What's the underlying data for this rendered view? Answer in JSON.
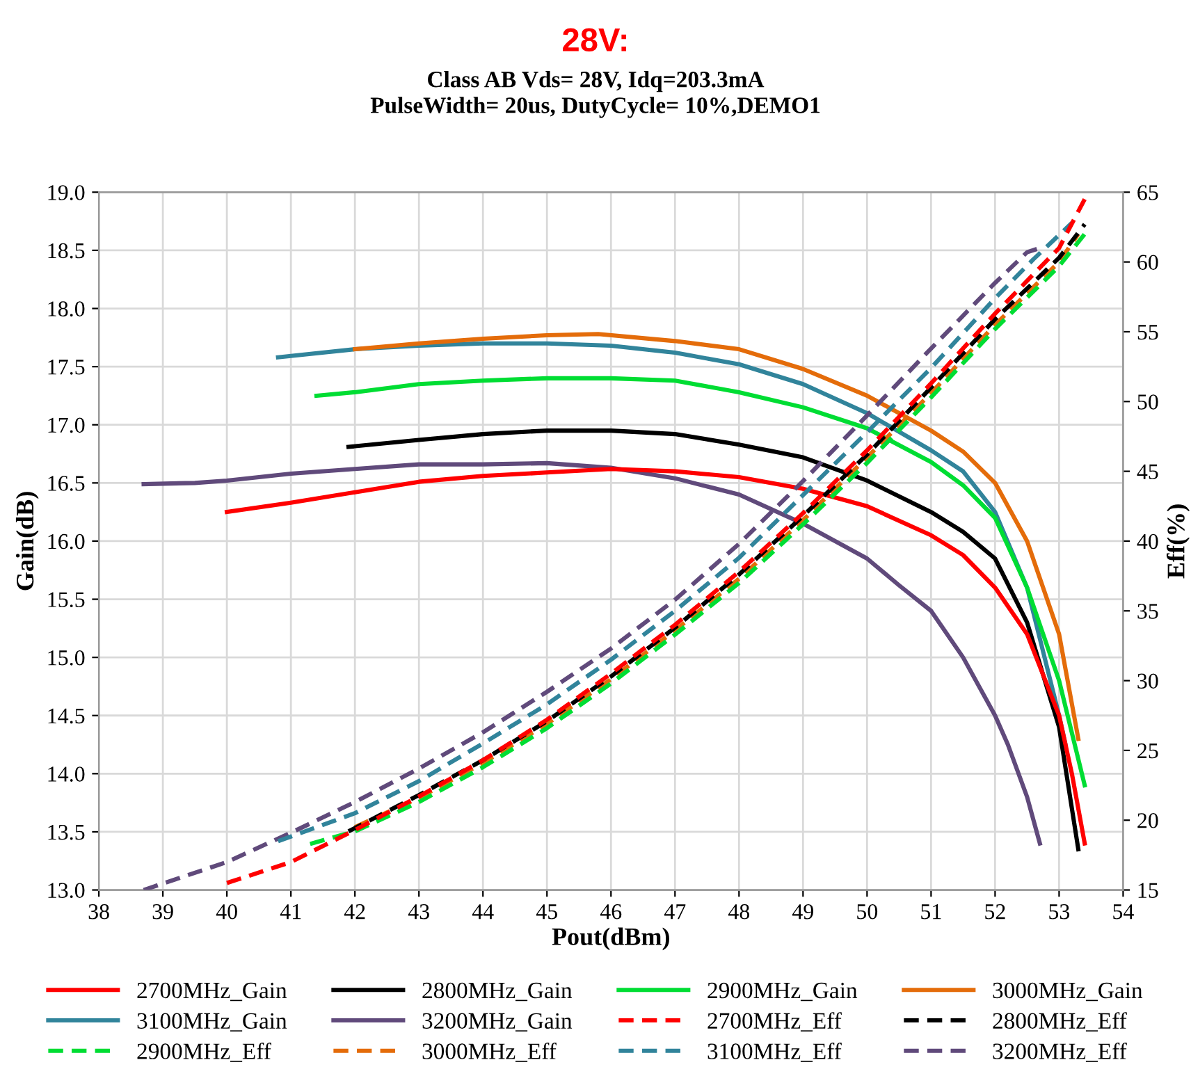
{
  "chart_data": {
    "type": "line",
    "title": "28V:",
    "subtitle": "Class AB Vds= 28V, Idq=203.3mA\nPulseWidth= 20us, DutyCycle= 10%,DEMO1",
    "xlabel": "Pout(dBm)",
    "ylabel": "Gain(dB)",
    "y2label": "Eff(%)",
    "xlim": [
      38,
      54
    ],
    "xticks": [
      38,
      39,
      40,
      41,
      42,
      43,
      44,
      45,
      46,
      47,
      48,
      49,
      50,
      51,
      52,
      53,
      54
    ],
    "ylim": [
      13,
      19
    ],
    "yticks": [
      {
        "value": 13,
        "label": "13.0"
      },
      {
        "value": 13.5,
        "label": "13.5"
      },
      {
        "value": 14,
        "label": "14.0"
      },
      {
        "value": 14.5,
        "label": "14.5"
      },
      {
        "value": 15,
        "label": "15.0"
      },
      {
        "value": 15.5,
        "label": "15.5"
      },
      {
        "value": 16,
        "label": "16.0"
      },
      {
        "value": 16.5,
        "label": "16.5"
      },
      {
        "value": 17,
        "label": "17.0"
      },
      {
        "value": 17.5,
        "label": "17.5"
      },
      {
        "value": 18,
        "label": "18.0"
      },
      {
        "value": 18.5,
        "label": "18.5"
      },
      {
        "value": 19,
        "label": "19.0"
      }
    ],
    "y2lim": [
      15,
      65
    ],
    "y2ticks": [
      15,
      20,
      25,
      30,
      35,
      40,
      45,
      50,
      55,
      60,
      65
    ],
    "grid": true,
    "legend": "bottom",
    "marker": "none",
    "series": [
      {
        "name": "2700MHz_Gain",
        "color": "#ff0000",
        "line_style": "solid",
        "x": [
          40,
          41,
          42,
          43,
          44,
          45,
          46,
          47,
          48,
          49,
          50,
          51,
          51.5,
          52,
          52.5,
          53,
          53.2,
          53.4
        ],
        "values": [
          16.25,
          16.33,
          16.42,
          16.51,
          16.56,
          16.59,
          16.62,
          16.6,
          16.55,
          16.45,
          16.3,
          16.05,
          15.88,
          15.6,
          15.2,
          14.5,
          14.0,
          13.4
        ]
      },
      {
        "name": "2800MHz_Gain",
        "color": "#000000",
        "line_style": "solid",
        "x": [
          41.9,
          43,
          44,
          45,
          46,
          47,
          48,
          49,
          50,
          51,
          51.5,
          52,
          52.5,
          53,
          53.3
        ],
        "values": [
          16.81,
          16.87,
          16.92,
          16.95,
          16.95,
          16.92,
          16.83,
          16.72,
          16.52,
          16.25,
          16.08,
          15.85,
          15.3,
          14.4,
          13.35
        ]
      },
      {
        "name": "2900MHz_Gain",
        "color": "#00dd33",
        "line_style": "solid",
        "x": [
          41.4,
          42,
          43,
          44,
          45,
          46,
          47,
          48,
          49,
          50,
          51,
          51.5,
          52,
          52.5,
          53,
          53.4
        ],
        "values": [
          17.25,
          17.28,
          17.35,
          17.38,
          17.4,
          17.4,
          17.38,
          17.28,
          17.15,
          16.97,
          16.68,
          16.48,
          16.2,
          15.6,
          14.8,
          13.9
        ]
      },
      {
        "name": "3000MHz_Gain",
        "color": "#e46c0a",
        "line_style": "solid",
        "x": [
          42,
          43,
          44,
          45,
          45.8,
          47,
          48,
          49,
          50,
          51,
          51.5,
          52,
          52.5,
          53,
          53.3
        ],
        "values": [
          17.65,
          17.7,
          17.74,
          17.77,
          17.78,
          17.72,
          17.65,
          17.48,
          17.25,
          16.95,
          16.77,
          16.5,
          16.0,
          15.2,
          14.3
        ]
      },
      {
        "name": "3100MHz_Gain",
        "color": "#31849b",
        "line_style": "solid",
        "x": [
          40.8,
          42,
          43,
          44,
          45,
          46,
          47,
          48,
          49,
          50,
          51,
          51.5,
          52,
          52.5,
          53,
          53.1
        ],
        "values": [
          17.58,
          17.65,
          17.68,
          17.7,
          17.7,
          17.68,
          17.62,
          17.52,
          17.35,
          17.1,
          16.78,
          16.6,
          16.25,
          15.6,
          14.5,
          14.25
        ]
      },
      {
        "name": "3200MHz_Gain",
        "color": "#604a7b",
        "line_style": "solid",
        "x": [
          38.7,
          39.5,
          40,
          41,
          42,
          43,
          44,
          45,
          46,
          47,
          48,
          49,
          50,
          50.5,
          51,
          51.5,
          52,
          52.2,
          52.5,
          52.7
        ],
        "values": [
          16.49,
          16.5,
          16.52,
          16.58,
          16.62,
          16.66,
          16.66,
          16.67,
          16.63,
          16.54,
          16.4,
          16.15,
          15.85,
          15.62,
          15.4,
          15.0,
          14.5,
          14.25,
          13.8,
          13.4
        ]
      },
      {
        "name": "2700MHz_Eff",
        "color": "#ff0000",
        "line_style": "dashed",
        "axis": "y2",
        "x": [
          40,
          41,
          42,
          43,
          44,
          45,
          46,
          47,
          48,
          49,
          50,
          51,
          52,
          53,
          53.4
        ],
        "values": [
          15.5,
          17,
          19.3,
          21.7,
          24.3,
          27.2,
          30.5,
          34,
          37.8,
          42,
          46.5,
          51.3,
          56.3,
          61,
          64.5
        ]
      },
      {
        "name": "2800MHz_Eff",
        "color": "#000000",
        "line_style": "dashed",
        "axis": "y2",
        "x": [
          41.9,
          43,
          44,
          45,
          46,
          47,
          48,
          49,
          50,
          51,
          52,
          53,
          53.4
        ],
        "values": [
          19.2,
          21.8,
          24.3,
          27.1,
          30.3,
          33.8,
          37.6,
          41.8,
          46.2,
          51,
          55.9,
          60.3,
          62.7
        ]
      },
      {
        "name": "2900MHz_Eff",
        "color": "#00dd33",
        "line_style": "dashed",
        "axis": "y2",
        "x": [
          41.3,
          42,
          43,
          44,
          45,
          46,
          47,
          48,
          49,
          50,
          51,
          52,
          53,
          53.4
        ],
        "values": [
          18.3,
          19.2,
          21.3,
          23.8,
          26.6,
          29.8,
          33.3,
          37,
          41.2,
          45.6,
          50.3,
          55.2,
          59.7,
          62
        ]
      },
      {
        "name": "3000MHz_Eff",
        "color": "#e46c0a",
        "line_style": "dashed",
        "axis": "y2",
        "x": [
          42,
          43,
          44,
          45,
          46,
          47,
          48,
          49,
          50,
          51,
          52,
          53,
          53.3
        ],
        "values": [
          19.5,
          21.6,
          24.1,
          26.9,
          30.1,
          33.6,
          37.3,
          41.5,
          46,
          50.6,
          55.5,
          60,
          62
        ]
      },
      {
        "name": "3100MHz_Eff",
        "color": "#31849b",
        "line_style": "dashed",
        "axis": "y2",
        "x": [
          40.8,
          42,
          43,
          44,
          45,
          46,
          47,
          48,
          49,
          50,
          51,
          52,
          52.6,
          53.2
        ],
        "values": [
          18.5,
          20.5,
          22.8,
          25.5,
          28.3,
          31.5,
          35,
          38.8,
          43.3,
          47.8,
          52.4,
          57.4,
          60.2,
          62.8
        ]
      },
      {
        "name": "3200MHz_Eff",
        "color": "#604a7b",
        "line_style": "dashed",
        "axis": "y2",
        "x": [
          38.7,
          40,
          41,
          42,
          43,
          44,
          45,
          46,
          47,
          48,
          49,
          50,
          51,
          52,
          52.5,
          52.7
        ],
        "values": [
          15.0,
          17,
          19.1,
          21.3,
          23.7,
          26.3,
          29.2,
          32.3,
          35.8,
          39.8,
          44.3,
          49,
          53.8,
          58.5,
          60.7,
          61
        ]
      }
    ]
  }
}
